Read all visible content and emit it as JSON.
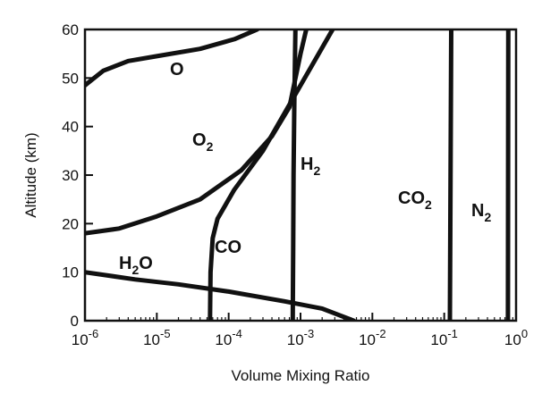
{
  "chart_data": {
    "type": "line",
    "title": "",
    "xlabel": "Volume Mixing Ratio",
    "ylabel": "Altitude (km)",
    "x_scale": "log",
    "xlim": [
      1e-06,
      1
    ],
    "ylim": [
      0,
      60
    ],
    "grid": false,
    "legend": "none",
    "x_ticks": [
      {
        "base": "10",
        "exp": "-6",
        "value": 1e-06
      },
      {
        "base": "10",
        "exp": "-5",
        "value": 1e-05
      },
      {
        "base": "10",
        "exp": "-4",
        "value": 0.0001
      },
      {
        "base": "10",
        "exp": "-3",
        "value": 0.001
      },
      {
        "base": "10",
        "exp": "-2",
        "value": 0.01
      },
      {
        "base": "10",
        "exp": "-1",
        "value": 0.1
      },
      {
        "base": "10",
        "exp": "0",
        "value": 1
      }
    ],
    "y_ticks": [
      "0",
      "10",
      "20",
      "30",
      "40",
      "50",
      "60"
    ],
    "series": [
      {
        "key": "O",
        "label": {
          "main": "O",
          "sub": ""
        },
        "points": [
          [
            1e-06,
            48.5
          ],
          [
            1.8e-06,
            51.5
          ],
          [
            4e-06,
            53.5
          ],
          [
            1e-05,
            54.5
          ],
          [
            4e-05,
            56.0
          ],
          [
            0.00012,
            58.0
          ],
          [
            0.00025,
            60.0
          ]
        ]
      },
      {
        "key": "O2",
        "label": {
          "main": "O",
          "sub": "2"
        },
        "points": [
          [
            1e-06,
            18.0
          ],
          [
            3e-06,
            19.0
          ],
          [
            1e-05,
            21.5
          ],
          [
            4e-05,
            25.0
          ],
          [
            0.00015,
            31.0
          ],
          [
            0.0004,
            38.0
          ],
          [
            0.0007,
            44.0
          ],
          [
            0.001,
            55.0
          ],
          [
            0.0012,
            60.0
          ]
        ]
      },
      {
        "key": "H2",
        "label": {
          "main": "H",
          "sub": "2"
        },
        "points": [
          [
            0.00078,
            0.0
          ],
          [
            0.00079,
            15.0
          ],
          [
            0.0008,
            30.0
          ],
          [
            0.00082,
            45.0
          ],
          [
            0.00085,
            60.0
          ]
        ]
      },
      {
        "key": "CO",
        "label": {
          "main": "CO",
          "sub": ""
        },
        "points": [
          [
            5.5e-05,
            0.0
          ],
          [
            5.6e-05,
            10.0
          ],
          [
            6e-05,
            17.0
          ],
          [
            7e-05,
            21.0
          ],
          [
            0.00012,
            27.0
          ],
          [
            0.0003,
            35.0
          ],
          [
            0.0008,
            46.0
          ],
          [
            0.0015,
            53.0
          ],
          [
            0.0028,
            60.0
          ]
        ]
      },
      {
        "key": "H2O",
        "label": {
          "main": "H",
          "sub": "2",
          "tail": "O"
        },
        "points": [
          [
            1e-06,
            10.0
          ],
          [
            5e-06,
            8.5
          ],
          [
            2e-05,
            7.5
          ],
          [
            0.0001,
            6.0
          ],
          [
            0.0006,
            4.0
          ],
          [
            0.002,
            2.5
          ],
          [
            0.0055,
            0.0
          ]
        ]
      },
      {
        "key": "CO2",
        "label": {
          "main": "CO",
          "sub": "2"
        },
        "points": [
          [
            0.12,
            0.0
          ],
          [
            0.125,
            60.0
          ]
        ]
      },
      {
        "key": "N2",
        "label": {
          "main": "N",
          "sub": "2"
        },
        "points": [
          [
            0.77,
            0.0
          ],
          [
            0.78,
            60.0
          ]
        ]
      }
    ]
  }
}
